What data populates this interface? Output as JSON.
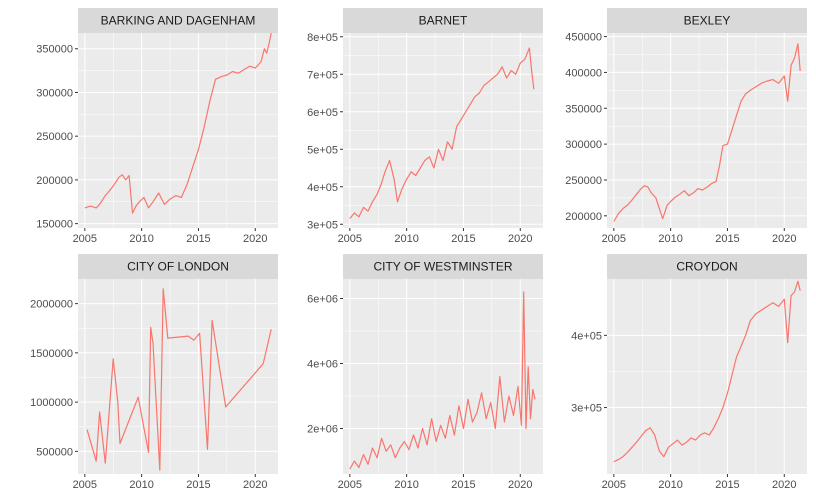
{
  "chart_data": {
    "type": "line",
    "layout": "facet 2x3, free y scales",
    "grid": true,
    "colors": {
      "line": "#f8766d",
      "panel": "#ebebeb",
      "strip": "#d9d9d9",
      "grid": "#ffffff"
    },
    "x_ticks": [
      2005,
      2010,
      2015,
      2020
    ],
    "panels": [
      {
        "title": "BARKING AND DAGENHAM",
        "xlim": [
          2004.4,
          2022.0
        ],
        "ylim": [
          145000,
          368000
        ],
        "y_ticks": [
          150000,
          200000,
          250000,
          300000,
          350000
        ],
        "y_tick_labels": [
          "150000",
          "200000",
          "250000",
          "300000",
          "350000"
        ],
        "x": [
          2005.0,
          2005.5,
          2006.0,
          2006.3,
          2006.8,
          2007.2,
          2007.6,
          2008.0,
          2008.3,
          2008.6,
          2008.9,
          2009.2,
          2009.5,
          2009.8,
          2010.2,
          2010.6,
          2011.0,
          2011.5,
          2012.0,
          2012.5,
          2013.0,
          2013.5,
          2014.0,
          2014.5,
          2015.0,
          2015.5,
          2016.0,
          2016.5,
          2017.0,
          2017.5,
          2018.0,
          2018.5,
          2019.0,
          2019.5,
          2020.0,
          2020.5,
          2020.8,
          2021.0,
          2021.2,
          2021.4
        ],
        "y": [
          168000,
          170000,
          168000,
          172000,
          182000,
          188000,
          195000,
          203000,
          206000,
          200000,
          205000,
          162000,
          170000,
          175000,
          180000,
          168000,
          175000,
          185000,
          172000,
          178000,
          182000,
          180000,
          195000,
          215000,
          235000,
          260000,
          290000,
          315000,
          318000,
          320000,
          324000,
          322000,
          326000,
          330000,
          328000,
          335000,
          350000,
          345000,
          355000,
          368000
        ]
      },
      {
        "title": "BARNET",
        "xlim": [
          2004.4,
          2022.0
        ],
        "ylim": [
          290000,
          810000
        ],
        "y_ticks": [
          300000,
          400000,
          500000,
          600000,
          700000,
          800000
        ],
        "y_tick_labels": [
          "3e+05",
          "4e+05",
          "5e+05",
          "6e+05",
          "7e+05",
          "8e+05"
        ],
        "x": [
          2005.0,
          2005.4,
          2005.8,
          2006.2,
          2006.6,
          2007.0,
          2007.4,
          2007.8,
          2008.1,
          2008.5,
          2008.9,
          2009.2,
          2009.6,
          2010.0,
          2010.4,
          2010.8,
          2011.2,
          2011.6,
          2012.0,
          2012.4,
          2012.8,
          2013.2,
          2013.6,
          2014.0,
          2014.4,
          2014.8,
          2015.2,
          2015.6,
          2016.0,
          2016.4,
          2016.8,
          2017.2,
          2017.6,
          2018.0,
          2018.4,
          2018.8,
          2019.2,
          2019.6,
          2020.0,
          2020.4,
          2020.8,
          2021.0,
          2021.2
        ],
        "y": [
          315000,
          330000,
          320000,
          345000,
          335000,
          360000,
          380000,
          410000,
          440000,
          470000,
          420000,
          360000,
          395000,
          420000,
          440000,
          430000,
          450000,
          470000,
          480000,
          450000,
          500000,
          470000,
          520000,
          500000,
          560000,
          580000,
          600000,
          620000,
          640000,
          650000,
          670000,
          680000,
          690000,
          700000,
          720000,
          690000,
          710000,
          700000,
          730000,
          740000,
          770000,
          710000,
          660000
        ]
      },
      {
        "title": "BEXLEY",
        "xlim": [
          2004.4,
          2022.0
        ],
        "ylim": [
          183000,
          455000
        ],
        "y_ticks": [
          200000,
          250000,
          300000,
          350000,
          400000,
          450000
        ],
        "y_tick_labels": [
          "200000",
          "250000",
          "300000",
          "350000",
          "400000",
          "450000"
        ],
        "x": [
          2005.0,
          2005.4,
          2005.8,
          2006.2,
          2006.6,
          2007.0,
          2007.4,
          2007.7,
          2008.0,
          2008.3,
          2008.7,
          2009.0,
          2009.3,
          2009.7,
          2010.0,
          2010.4,
          2010.8,
          2011.2,
          2011.6,
          2012.0,
          2012.4,
          2012.8,
          2013.2,
          2013.6,
          2014.0,
          2014.3,
          2014.6,
          2015.0,
          2015.4,
          2015.8,
          2016.2,
          2016.6,
          2017.0,
          2017.5,
          2018.0,
          2018.5,
          2019.0,
          2019.5,
          2020.0,
          2020.3,
          2020.6,
          2020.9,
          2021.2,
          2021.4
        ],
        "y": [
          192000,
          203000,
          210000,
          215000,
          222000,
          230000,
          238000,
          242000,
          240000,
          232000,
          225000,
          210000,
          196000,
          215000,
          220000,
          226000,
          230000,
          235000,
          228000,
          232000,
          238000,
          236000,
          240000,
          245000,
          248000,
          270000,
          298000,
          300000,
          320000,
          340000,
          360000,
          370000,
          375000,
          380000,
          385000,
          388000,
          390000,
          385000,
          395000,
          360000,
          410000,
          420000,
          440000,
          402000
        ]
      },
      {
        "title": "CITY OF LONDON",
        "xlim": [
          2004.4,
          2022.0
        ],
        "ylim": [
          270000,
          2250000
        ],
        "y_ticks": [
          500000,
          1000000,
          1500000,
          2000000
        ],
        "y_tick_labels": [
          "500000",
          "1000000",
          "1500000",
          "2000000"
        ],
        "x": [
          2005.2,
          2006.0,
          2006.3,
          2006.8,
          2007.5,
          2007.9,
          2008.1,
          2009.7,
          2010.6,
          2010.8,
          2011.0,
          2011.6,
          2011.9,
          2012.3,
          2014.1,
          2014.6,
          2015.1,
          2015.8,
          2016.2,
          2017.4,
          2020.7,
          2021.4
        ],
        "y": [
          720000,
          400000,
          900000,
          380000,
          1440000,
          1000000,
          580000,
          1050000,
          490000,
          1760000,
          1600000,
          310000,
          2150000,
          1650000,
          1670000,
          1630000,
          1700000,
          520000,
          1830000,
          950000,
          1390000,
          1740000
        ]
      },
      {
        "title": "CITY OF WESTMINSTER",
        "xlim": [
          2004.4,
          2022.0
        ],
        "ylim": [
          600000,
          6600000
        ],
        "y_ticks": [
          2000000,
          4000000,
          6000000
        ],
        "y_tick_labels": [
          "2e+06",
          "4e+06",
          "6e+06"
        ],
        "x": [
          2005.0,
          2005.4,
          2005.8,
          2006.2,
          2006.6,
          2007.0,
          2007.4,
          2007.8,
          2008.2,
          2008.6,
          2009.0,
          2009.4,
          2009.8,
          2010.2,
          2010.6,
          2011.0,
          2011.4,
          2011.8,
          2012.2,
          2012.6,
          2013.0,
          2013.4,
          2013.8,
          2014.2,
          2014.6,
          2015.0,
          2015.4,
          2015.8,
          2016.2,
          2016.6,
          2017.0,
          2017.4,
          2017.8,
          2018.2,
          2018.6,
          2019.0,
          2019.4,
          2019.8,
          2020.1,
          2020.3,
          2020.5,
          2020.7,
          2020.9,
          2021.1,
          2021.3
        ],
        "y": [
          750000,
          1000000,
          800000,
          1200000,
          900000,
          1400000,
          1100000,
          1700000,
          1300000,
          1500000,
          1100000,
          1400000,
          1600000,
          1350000,
          1800000,
          1400000,
          2000000,
          1500000,
          2300000,
          1600000,
          2100000,
          1700000,
          2400000,
          1800000,
          2700000,
          2000000,
          2900000,
          2200000,
          2500000,
          3100000,
          2300000,
          2800000,
          2000000,
          3600000,
          2200000,
          3000000,
          2400000,
          3300000,
          2100000,
          6200000,
          2000000,
          3900000,
          2300000,
          3200000,
          2900000
        ]
      },
      {
        "title": "CROYDON",
        "xlim": [
          2004.4,
          2022.0
        ],
        "ylim": [
          208000,
          478000
        ],
        "y_ticks": [
          300000,
          400000
        ],
        "y_tick_labels": [
          "3e+05",
          "4e+05"
        ],
        "x": [
          2005.0,
          2005.4,
          2005.8,
          2006.2,
          2006.6,
          2007.0,
          2007.4,
          2007.8,
          2008.2,
          2008.6,
          2009.0,
          2009.4,
          2009.8,
          2010.2,
          2010.6,
          2011.0,
          2011.4,
          2011.8,
          2012.2,
          2012.6,
          2013.0,
          2013.4,
          2013.8,
          2014.2,
          2014.6,
          2015.0,
          2015.4,
          2015.8,
          2016.2,
          2016.6,
          2017.0,
          2017.5,
          2018.0,
          2018.5,
          2019.0,
          2019.5,
          2020.0,
          2020.3,
          2020.6,
          2020.9,
          2021.2,
          2021.4
        ],
        "y": [
          225000,
          228000,
          232000,
          238000,
          245000,
          252000,
          260000,
          268000,
          272000,
          262000,
          240000,
          232000,
          245000,
          250000,
          255000,
          248000,
          252000,
          258000,
          255000,
          262000,
          265000,
          262000,
          272000,
          285000,
          300000,
          320000,
          345000,
          370000,
          385000,
          400000,
          420000,
          430000,
          435000,
          440000,
          445000,
          440000,
          450000,
          390000,
          455000,
          460000,
          475000,
          462000
        ]
      }
    ]
  }
}
